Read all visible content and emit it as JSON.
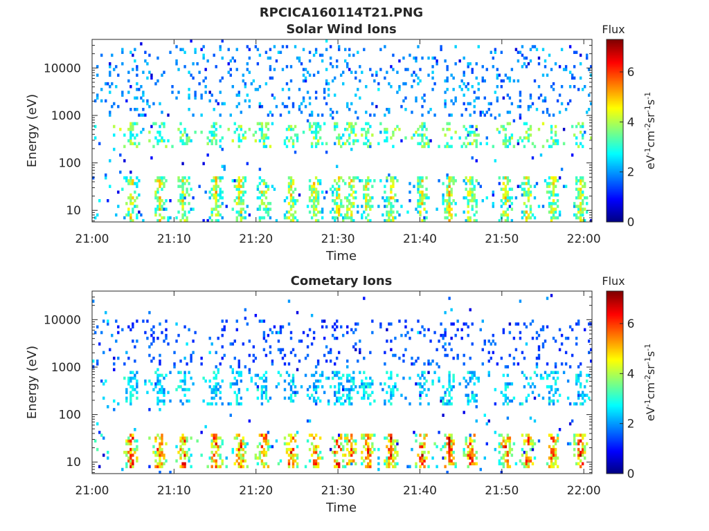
{
  "figure_title": "RPCICA160114T21.PNG",
  "colors": {
    "axis": "#262626",
    "background": "#ffffff",
    "colormap": [
      "#00007f",
      "#0000ff",
      "#007fff",
      "#00ffff",
      "#7fff7f",
      "#ffff00",
      "#ff7f00",
      "#ff0000",
      "#7f0000"
    ]
  },
  "chart_data": [
    {
      "type": "heatmap",
      "title": "Solar Wind Ions",
      "xlabel": "Time",
      "ylabel": "Energy (eV)",
      "x_ticks": [
        "21:00",
        "21:10",
        "21:20",
        "21:30",
        "21:40",
        "21:50",
        "22:00"
      ],
      "x_range": [
        "21:00",
        "22:01"
      ],
      "y_scale": "log",
      "y_ticks": [
        "10",
        "100",
        "1000",
        "10000"
      ],
      "y_range": [
        5.7,
        40000
      ],
      "colorbar": {
        "title": "Flux",
        "label": "eV-1cm-2sr-1s-1",
        "ticks": [
          "0",
          "2",
          "4",
          "6"
        ],
        "range": [
          0,
          7.3
        ]
      },
      "activity_minutes": [
        4.8,
        8.2,
        11.2,
        15.1,
        18.0,
        20.9,
        24.3,
        27.2,
        30.0,
        31.5,
        33.6,
        36.5,
        40.3,
        43.6,
        46.2,
        50.5,
        53.1,
        56.2,
        59.6
      ],
      "features": [
        {
          "name": "low-energy band",
          "energy_range": [
            6,
            50
          ],
          "flux": 4.0
        },
        {
          "name": "solar wind band",
          "energy_range": [
            200,
            700
          ],
          "flux": 3.5
        },
        {
          "name": "scattered high energy",
          "energy_range": [
            1000,
            30000
          ],
          "flux": 2.0
        }
      ]
    },
    {
      "type": "heatmap",
      "title": "Cometary Ions",
      "xlabel": "Time",
      "ylabel": "Energy (eV)",
      "x_ticks": [
        "21:00",
        "21:10",
        "21:20",
        "21:30",
        "21:40",
        "21:50",
        "22:00"
      ],
      "x_range": [
        "21:00",
        "22:01"
      ],
      "y_scale": "log",
      "y_ticks": [
        "10",
        "100",
        "1000",
        "10000"
      ],
      "y_range": [
        5.7,
        40000
      ],
      "colorbar": {
        "title": "Flux",
        "label": "eV-1cm-2sr-1s-1",
        "ticks": [
          "0",
          "2",
          "4",
          "6"
        ],
        "range": [
          0,
          7.3
        ]
      },
      "activity_minutes": [
        4.8,
        8.2,
        11.2,
        15.1,
        18.0,
        20.9,
        24.3,
        27.2,
        30.0,
        31.5,
        33.6,
        36.5,
        40.3,
        43.6,
        46.2,
        50.5,
        53.1,
        56.2,
        59.6
      ],
      "features": [
        {
          "name": "cometary low-energy band",
          "energy_range": [
            8,
            40
          ],
          "flux": 5.2
        },
        {
          "name": "mid-energy clusters",
          "energy_range": [
            150,
            800
          ],
          "flux": 2.5
        },
        {
          "name": "scattered high energy",
          "energy_range": [
            1000,
            10000
          ],
          "flux": 1.5
        }
      ]
    }
  ]
}
